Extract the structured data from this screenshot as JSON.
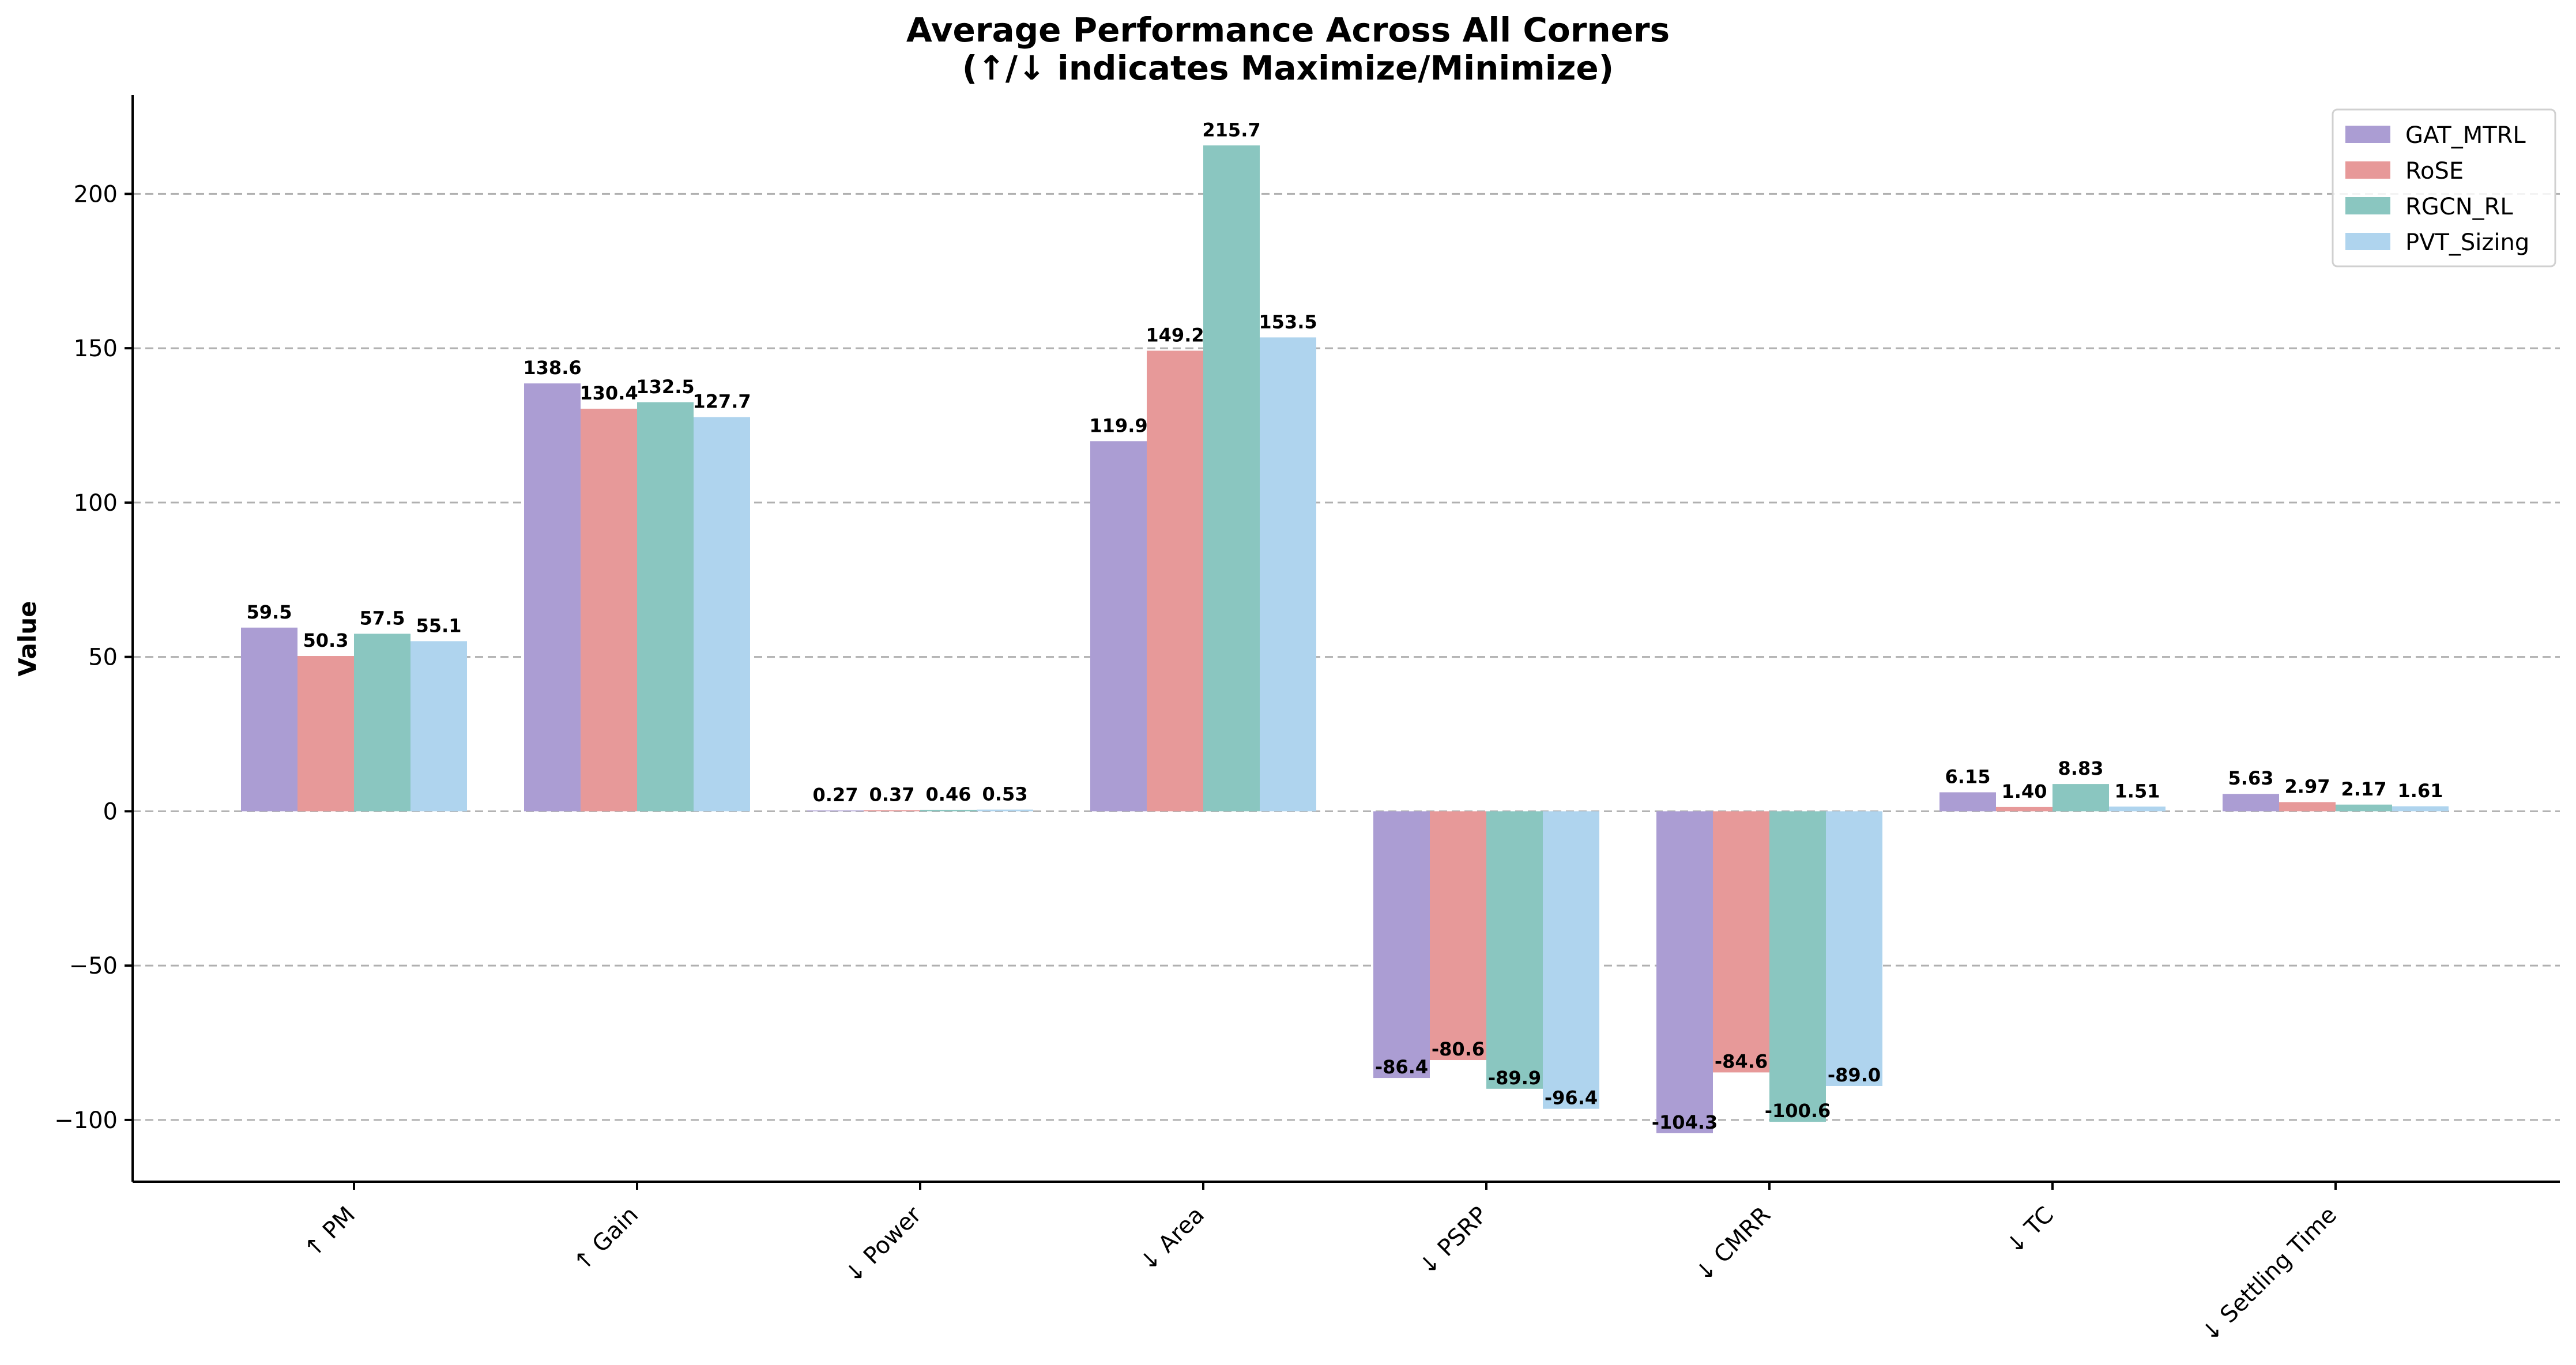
{
  "chart_data": {
    "type": "bar",
    "title": "Average Performance Across All Corners",
    "subtitle": "(↑/↓ indicates Maximize/Minimize)",
    "ylabel": "Value",
    "xlabel": "",
    "categories": [
      "↑ PM",
      "↑ Gain",
      "↓ Power",
      "↓ Area",
      "↓ PSRP",
      "↓ CMRR",
      "↓ TC",
      "↓ Settling Time"
    ],
    "ylim": [
      -120,
      232
    ],
    "yticks": [
      -100,
      -50,
      0,
      50,
      100,
      150,
      200
    ],
    "ytick_labels": [
      "−100",
      "−50",
      "0",
      "50",
      "100",
      "150",
      "200"
    ],
    "grid": "horizontal dashed",
    "legend_position": "top-right",
    "series": [
      {
        "name": "GAT_MTRL",
        "color": "#ab9dd3",
        "values": [
          59.5,
          138.6,
          0.27,
          119.9,
          -86.4,
          -104.3,
          6.15,
          5.63
        ],
        "labels": [
          "59.5",
          "138.6",
          "0.27",
          "119.9",
          "-86.4",
          "-104.3",
          "6.15",
          "5.63"
        ]
      },
      {
        "name": "RoSE",
        "color": "#e79999",
        "values": [
          50.3,
          130.4,
          0.37,
          149.2,
          -80.6,
          -84.6,
          1.4,
          2.97
        ],
        "labels": [
          "50.3",
          "130.4",
          "0.37",
          "149.2",
          "-80.6",
          "-84.6",
          "1.40",
          "2.97"
        ]
      },
      {
        "name": "RGCN_RL",
        "color": "#8ac6c0",
        "values": [
          57.5,
          132.5,
          0.46,
          215.7,
          -89.9,
          -100.6,
          8.83,
          2.17
        ],
        "labels": [
          "57.5",
          "132.5",
          "0.46",
          "215.7",
          "-89.9",
          "-100.6",
          "8.83",
          "2.17"
        ]
      },
      {
        "name": "PVT_Sizing",
        "color": "#afd4ee",
        "values": [
          55.1,
          127.7,
          0.53,
          153.5,
          -96.4,
          -89.0,
          1.51,
          1.61
        ],
        "labels": [
          "55.1",
          "127.7",
          "0.53",
          "153.5",
          "-96.4",
          "-89.0",
          "1.51",
          "1.61"
        ]
      }
    ]
  }
}
